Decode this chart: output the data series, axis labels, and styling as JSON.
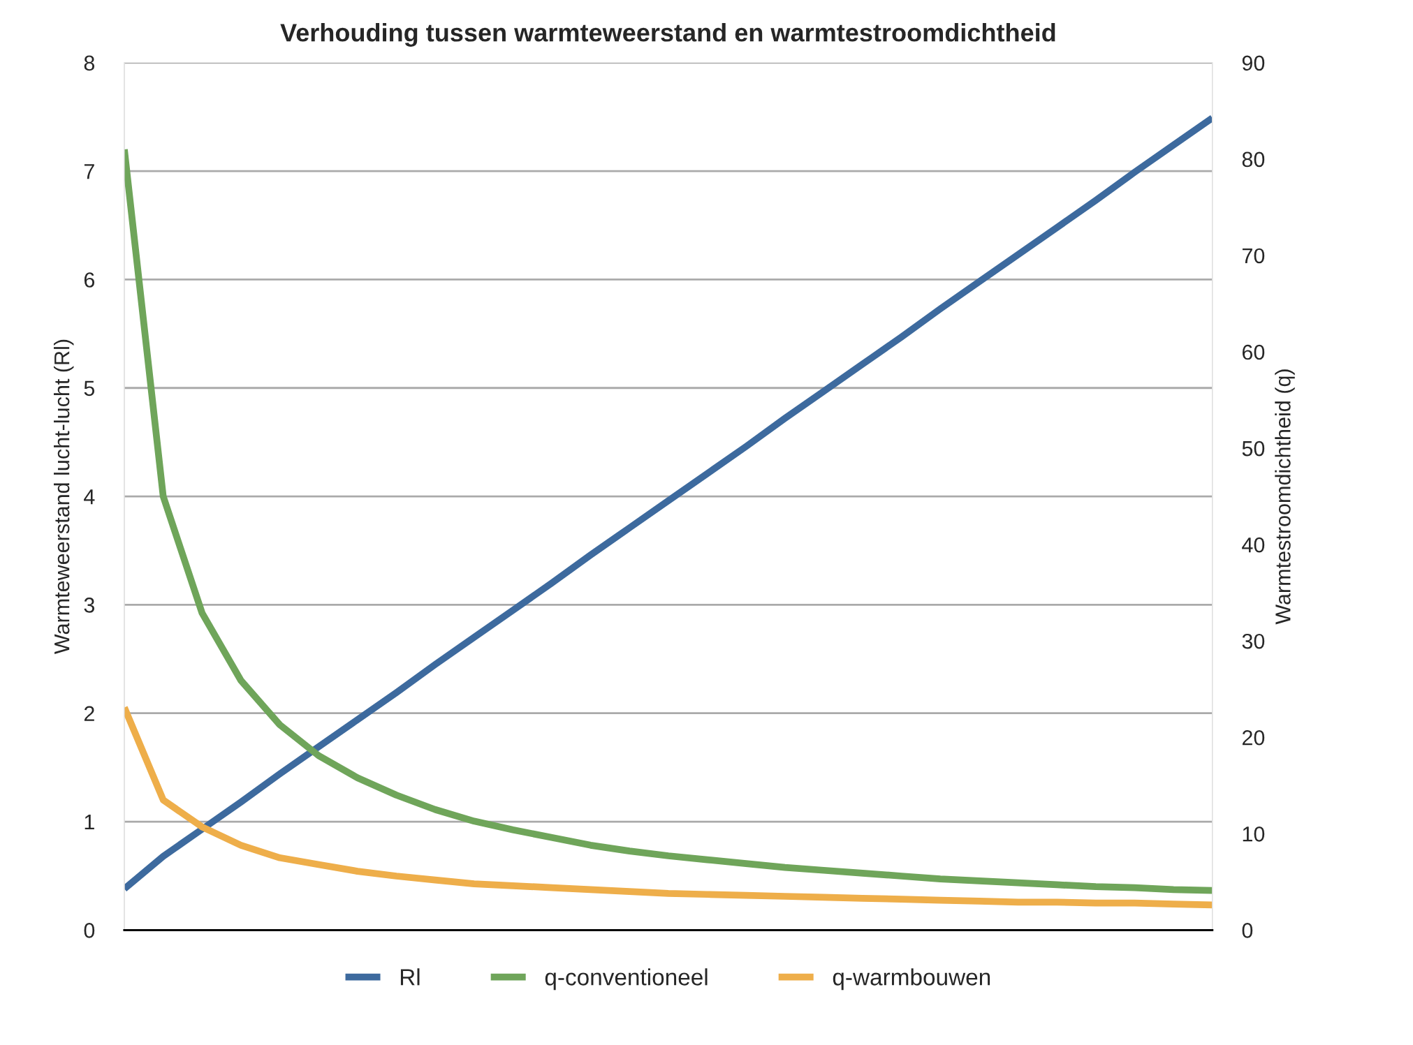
{
  "chart_data": {
    "type": "line",
    "title": "Verhouding tussen warmteweerstand en warmtestroomdichtheid",
    "ylabel": "Warmteweerstand lucht-lucht (Rl)",
    "y2label": "Warmtestroomdichtheid (q)",
    "categories": [
      null,
      null,
      null,
      null,
      null,
      null,
      null,
      null,
      null,
      null,
      null,
      null,
      null,
      null,
      null,
      null,
      null,
      null,
      null,
      null,
      null,
      null,
      null,
      null,
      null,
      null,
      null,
      null,
      null
    ],
    "series": [
      {
        "name": "Rl",
        "color": "#3d6a9e",
        "values": [
          0.38,
          0.68,
          0.93,
          1.18,
          1.44,
          1.69,
          1.94,
          2.19,
          2.45,
          2.7,
          2.95,
          3.2,
          3.46,
          3.71,
          3.96,
          4.21,
          4.46,
          4.72,
          4.97,
          5.22,
          5.47,
          5.73,
          5.98,
          6.23,
          6.48,
          6.73,
          6.99,
          7.24,
          7.49
        ]
      },
      {
        "name": "q-conventioneel",
        "color": "#6fa55a",
        "axis": "y2",
        "values": [
          81,
          45.0,
          32.9,
          25.9,
          21.3,
          18.1,
          15.8,
          14.0,
          12.5,
          11.3,
          10.4,
          9.6,
          8.8,
          8.2,
          7.7,
          7.3,
          6.9,
          6.5,
          6.2,
          5.9,
          5.6,
          5.3,
          5.1,
          4.9,
          4.7,
          4.5,
          4.4,
          4.2,
          4.1
        ]
      },
      {
        "name": "q-warmbouwen",
        "color": "#eeae4a",
        "axis": "y2",
        "values": [
          23.1,
          13.5,
          10.7,
          8.8,
          7.5,
          6.8,
          6.1,
          5.6,
          5.2,
          4.8,
          4.6,
          4.4,
          4.2,
          4.0,
          3.8,
          3.7,
          3.6,
          3.5,
          3.4,
          3.3,
          3.2,
          3.1,
          3.0,
          2.9,
          2.9,
          2.8,
          2.8,
          2.7,
          2.6
        ]
      }
    ],
    "ylim": [
      0,
      8
    ],
    "yticks": [
      0,
      1,
      2,
      3,
      4,
      5,
      6,
      7,
      8
    ],
    "y2lim": [
      0,
      90
    ],
    "y2ticks": [
      0,
      10,
      20,
      30,
      40,
      50,
      60,
      70,
      80,
      90
    ],
    "grid": "y",
    "legend": "bottom",
    "marker": "none",
    "line_style": "solid"
  }
}
